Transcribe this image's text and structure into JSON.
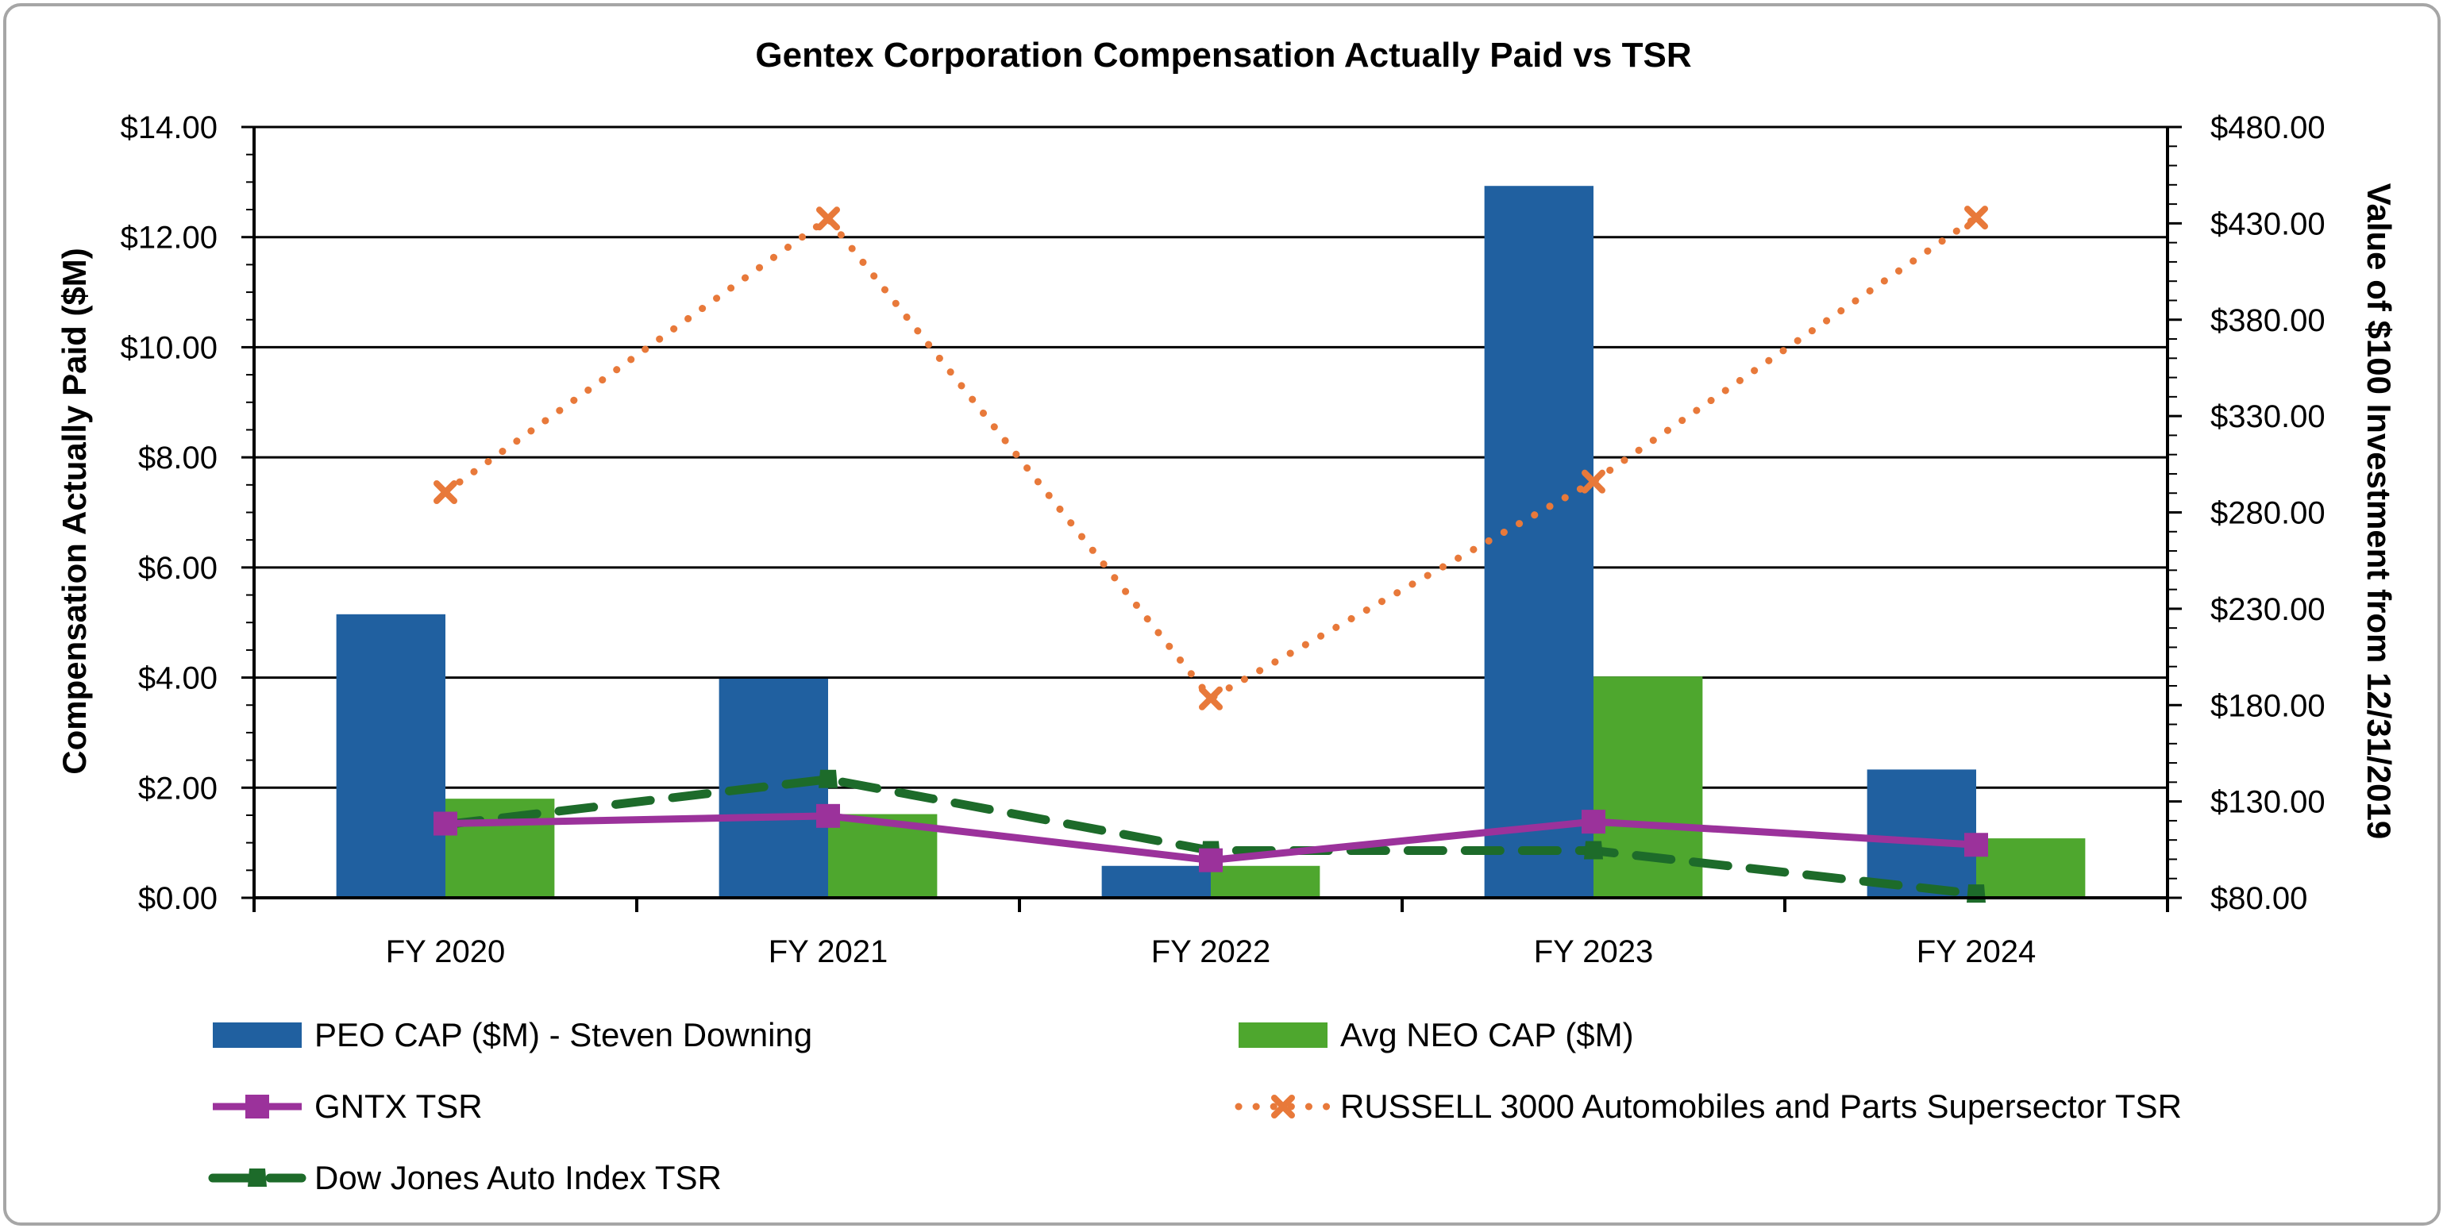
{
  "chart_data": {
    "type": "bar",
    "title": "Gentex Corporation Compensation Actually Paid vs TSR",
    "categories": [
      "FY 2020",
      "FY 2021",
      "FY 2022",
      "FY 2023",
      "FY 2024"
    ],
    "ylabel": "Compensation Actually Paid ($M)",
    "y2label": "Value of $100 Investment from 12/31/2019",
    "ylim": [
      0,
      14
    ],
    "y_ticks": [
      "$0.00",
      "$2.00",
      "$4.00",
      "$6.00",
      "$8.00",
      "$10.00",
      "$12.00",
      "$14.00"
    ],
    "y2lim": [
      80,
      480
    ],
    "y2_ticks": [
      "$80.00",
      "$130.00",
      "$180.00",
      "$230.00",
      "$280.00",
      "$330.00",
      "$380.00",
      "$430.00",
      "$480.00"
    ],
    "grid": true,
    "legend_position": "bottom",
    "bar_series": [
      {
        "name": "PEO CAP ($M) - Steven Downing",
        "color": "#2060a0",
        "values": [
          5.15,
          3.98,
          0.58,
          12.93,
          2.33
        ]
      },
      {
        "name": "Avg NEO CAP ($M)",
        "color": "#4ea72e",
        "values": [
          1.8,
          1.52,
          0.58,
          4.02,
          1.08
        ]
      }
    ],
    "line_series": [
      {
        "name": "GNTX TSR",
        "color": "#9b329b",
        "style": "solid",
        "marker": "square",
        "values": [
          118.5,
          122.5,
          99.5,
          119.5,
          107.5
        ]
      },
      {
        "name": "RUSSELL 3000 Automobiles and Parts Supersector TSR",
        "color": "#e8793a",
        "style": "dotted",
        "marker": "x",
        "values": [
          290.5,
          432.5,
          183.5,
          296.0,
          433.0
        ]
      },
      {
        "name": "Dow Jones Auto Index TSR",
        "color": "#1d6b2a",
        "style": "dashed",
        "marker": "triangle",
        "values": [
          118.0,
          141.5,
          104.5,
          104.5,
          82.0
        ]
      }
    ]
  }
}
